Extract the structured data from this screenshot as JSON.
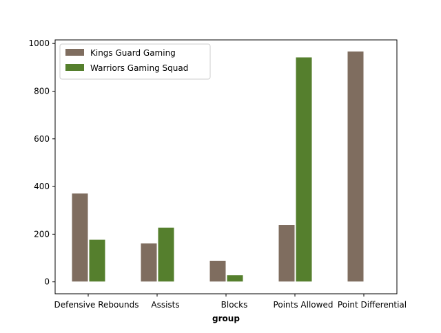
{
  "chart_data": {
    "type": "bar",
    "title": "",
    "xlabel": "group",
    "ylabel": "",
    "categories": [
      "Defensive Rebounds",
      "Assists",
      "Blocks",
      "Points Allowed",
      "Point Differential"
    ],
    "series": [
      {
        "name": "Kings Guard Gaming",
        "color": "#7f6d5f",
        "values": [
          372,
          163,
          90,
          240,
          968
        ]
      },
      {
        "name": "Warriors Gaming Squad",
        "color": "#557f2d",
        "values": [
          178,
          229,
          29,
          943,
          0
        ]
      }
    ],
    "ylim": [
      -50,
      1015
    ],
    "yticks": [
      0,
      200,
      400,
      600,
      800,
      1000
    ],
    "grid": false,
    "legend_position": "top-left"
  }
}
